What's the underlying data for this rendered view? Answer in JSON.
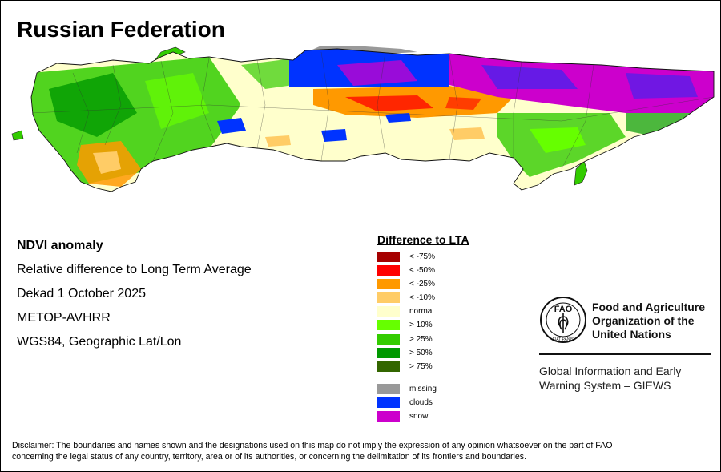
{
  "title": "Russian Federation",
  "info": {
    "product": "NDVI anomaly",
    "description": "Relative difference to Long Term Average",
    "period": "Dekad 1 October 2025",
    "sensor": "METOP-AVHRR",
    "projection": "WGS84, Geographic Lat/Lon"
  },
  "legend": {
    "title": "Difference to LTA",
    "classes": [
      {
        "label": "< -75%",
        "color": "#a50000"
      },
      {
        "label": "< -50%",
        "color": "#ff0000"
      },
      {
        "label": "< -25%",
        "color": "#ff9900"
      },
      {
        "label": "< -10%",
        "color": "#ffcc66"
      },
      {
        "label": "normal",
        "color": "#ffffcc"
      },
      {
        "label": "> 10%",
        "color": "#66ff00"
      },
      {
        "label": "> 25%",
        "color": "#33cc00"
      },
      {
        "label": "> 50%",
        "color": "#009900"
      },
      {
        "label": "> 75%",
        "color": "#336600"
      }
    ],
    "masks": [
      {
        "label": "missing",
        "color": "#999999"
      },
      {
        "label": "clouds",
        "color": "#0033ff"
      },
      {
        "label": "snow",
        "color": "#cc00cc"
      }
    ]
  },
  "organization": {
    "name_line1": "Food and Agriculture",
    "name_line2": "Organization of the",
    "name_line3": "United Nations",
    "logo_text": "FAO",
    "logo_motto": "FIAT PANIS",
    "system_line1": "Global Information and Early",
    "system_line2": "Warning System – GIEWS"
  },
  "disclaimer": {
    "line1": "Disclaimer: The boundaries and names shown and the designations used on this map do not imply the expression of any opinion whatsoever on the part of FAO",
    "line2": "concerning the legal status of any country, territory, area or of its authorities, or concerning the delimitation of its frontiers and boundaries."
  }
}
